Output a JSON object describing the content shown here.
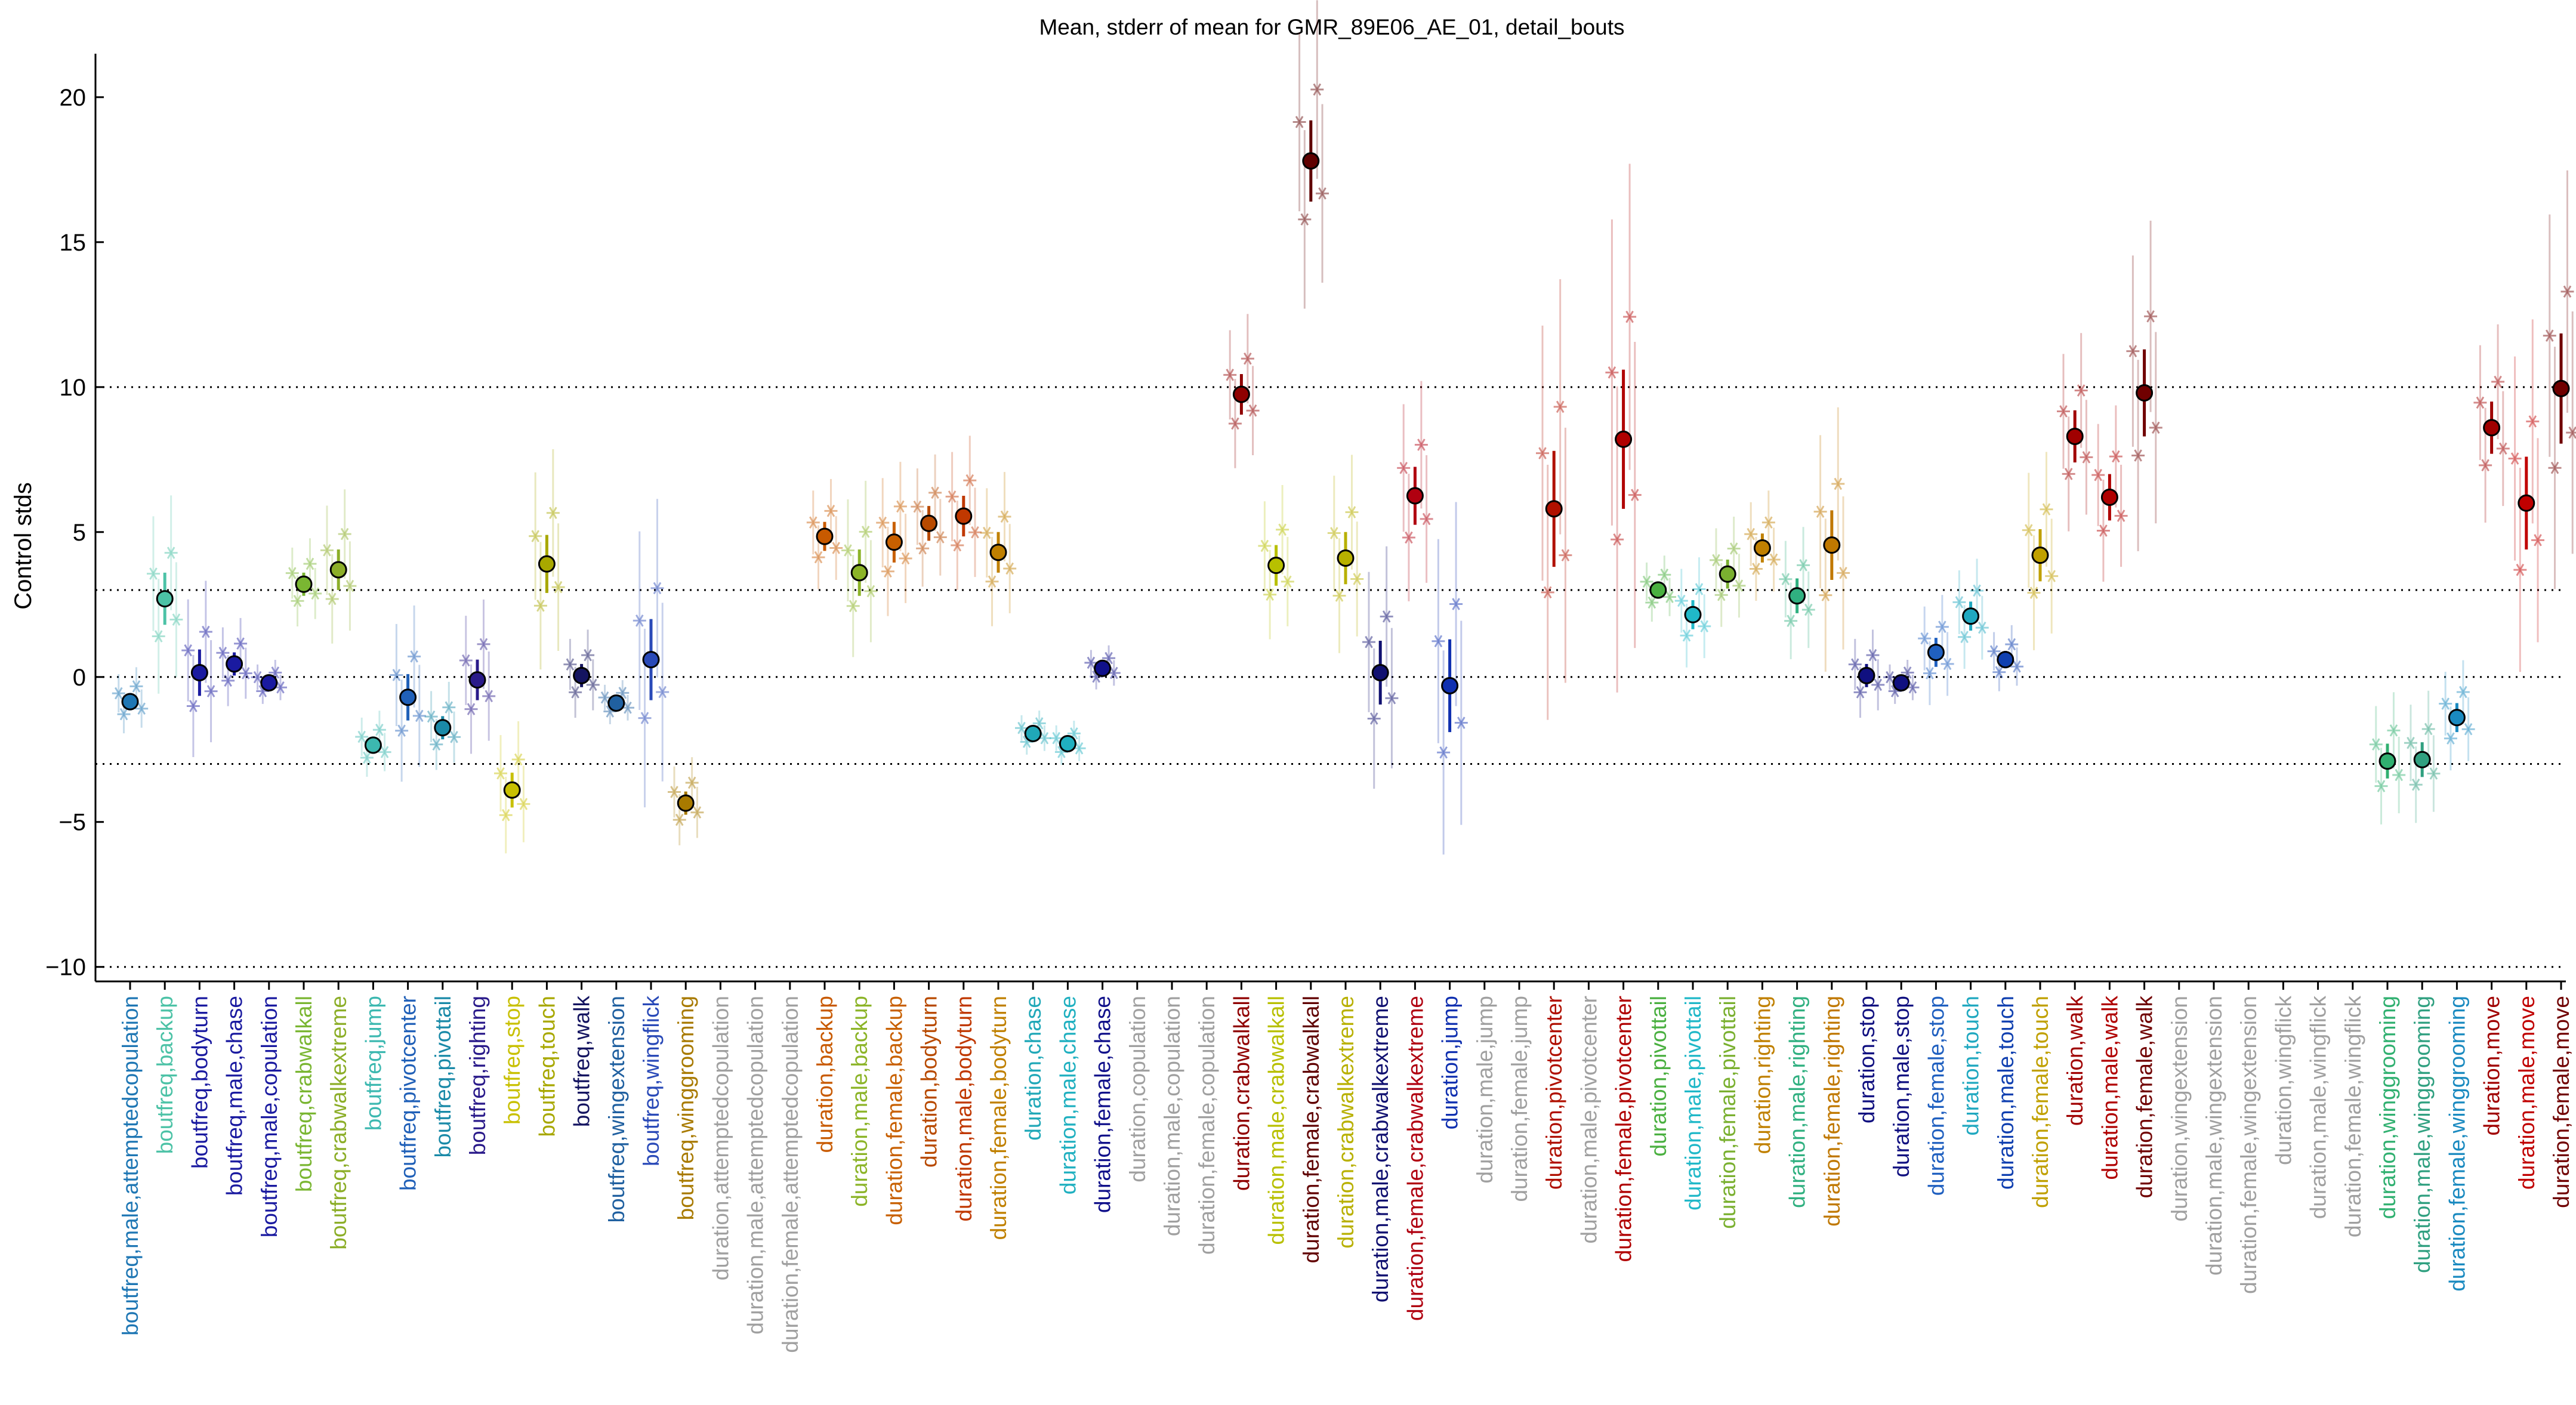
{
  "chart_data": {
    "type": "scatter",
    "title": "Mean, stderr of mean for GMR_89E06_AE_01, detail_bouts",
    "xlabel": "",
    "ylabel": "Control stds",
    "ylim": [
      -10.5,
      21.5
    ],
    "yticks": [
      -10,
      -5,
      0,
      5,
      10,
      15,
      20
    ],
    "ytick_labels": [
      "−10",
      "−5",
      "0",
      "5",
      "10",
      "15",
      "20"
    ],
    "reference_lines": [
      -10,
      -3,
      0,
      3,
      10
    ],
    "grid": false,
    "legend": "none",
    "categories": [
      "boutfreq,male,attemptedcopulation",
      "boutfreq,backup",
      "boutfreq,bodyturn",
      "boutfreq,male,chase",
      "boutfreq,male,copulation",
      "boutfreq,crabwalkall",
      "boutfreq,crabwalkextreme",
      "boutfreq,jump",
      "boutfreq,pivotcenter",
      "boutfreq,pivottail",
      "boutfreq,righting",
      "boutfreq,stop",
      "boutfreq,touch",
      "boutfreq,walk",
      "boutfreq,wingextension",
      "boutfreq,wingflick",
      "boutfreq,winggrooming",
      "duration,attemptedcopulation",
      "duration,male,attemptedcopulation",
      "duration,female,attemptedcopulation",
      "duration,backup",
      "duration,male,backup",
      "duration,female,backup",
      "duration,bodyturn",
      "duration,male,bodyturn",
      "duration,female,bodyturn",
      "duration,chase",
      "duration,male,chase",
      "duration,female,chase",
      "duration,copulation",
      "duration,male,copulation",
      "duration,female,copulation",
      "duration,crabwalkall",
      "duration,male,crabwalkall",
      "duration,female,crabwalkall",
      "duration,crabwalkextreme",
      "duration,male,crabwalkextreme",
      "duration,female,crabwalkextreme",
      "duration,jump",
      "duration,male,jump",
      "duration,female,jump",
      "duration,pivotcenter",
      "duration,male,pivotcenter",
      "duration,female,pivotcenter",
      "duration,pivottail",
      "duration,male,pivottail",
      "duration,female,pivottail",
      "duration,righting",
      "duration,male,righting",
      "duration,female,righting",
      "duration,stop",
      "duration,male,stop",
      "duration,female,stop",
      "duration,touch",
      "duration,male,touch",
      "duration,female,touch",
      "duration,walk",
      "duration,male,walk",
      "duration,female,walk",
      "duration,wingextension",
      "duration,male,wingextension",
      "duration,female,wingextension",
      "duration,wingflick",
      "duration,male,wingflick",
      "duration,female,wingflick",
      "duration,winggrooming",
      "duration,male,winggrooming",
      "duration,female,winggrooming",
      "duration,move",
      "duration,male,move",
      "duration,female,move"
    ],
    "label_colors": [
      "#1f77b4",
      "#4cc2a6",
      "#1a1aa0",
      "#1a1aa0",
      "#1a1aa0",
      "#7ab632",
      "#8cae28",
      "#3cb8b0",
      "#2060b8",
      "#1a8aa8",
      "#2a1a8a",
      "#c8c000",
      "#a8a800",
      "#141460",
      "#2060a0",
      "#2a4ab8",
      "#a87a00",
      "#a0a0a0",
      "#a0a0a0",
      "#a0a0a0",
      "#c85a00",
      "#8cb428",
      "#c86000",
      "#b84a00",
      "#c03800",
      "#c08000",
      "#20a8b8",
      "#20b0c0",
      "#10108a",
      "#a0a0a0",
      "#a0a0a0",
      "#a0a0a0",
      "#900000",
      "#b8c000",
      "#600000",
      "#b8b000",
      "#101070",
      "#b00010",
      "#1030b0",
      "#a0a0a0",
      "#a0a0a0",
      "#b01000",
      "#a0a0a0",
      "#b00000",
      "#4ab040",
      "#20b8c8",
      "#7ab030",
      "#c08000",
      "#30b080",
      "#c07800",
      "#101080",
      "#101080",
      "#2060c0",
      "#20a8c0",
      "#1040b0",
      "#c0a000",
      "#a00000",
      "#b00000",
      "#700000",
      "#a0a0a0",
      "#a0a0a0",
      "#a0a0a0",
      "#a0a0a0",
      "#a0a0a0",
      "#a0a0a0",
      "#30b070",
      "#30a080",
      "#1a8ac0",
      "#a00000",
      "#c00000",
      "#700000"
    ],
    "series": [
      {
        "values": [
          -0.85,
          2.7,
          0.15,
          0.45,
          -0.2,
          3.2,
          3.7,
          -2.35,
          -0.7,
          -1.75,
          -0.1,
          -3.9,
          3.9,
          0.05,
          -0.9,
          0.6,
          -4.35,
          null,
          null,
          null,
          4.85,
          3.6,
          4.65,
          5.3,
          5.55,
          4.3,
          -1.95,
          -2.3,
          0.3,
          null,
          null,
          null,
          9.75,
          3.85,
          17.8,
          4.1,
          0.15,
          6.25,
          -0.3,
          null,
          null,
          5.8,
          null,
          8.2,
          3.0,
          2.15,
          3.55,
          4.45,
          2.8,
          4.55,
          0.05,
          -0.2,
          0.85,
          2.1,
          0.6,
          4.2,
          8.3,
          6.2,
          9.8,
          null,
          null,
          null,
          null,
          null,
          null,
          -2.9,
          -2.85,
          -1.4,
          8.6,
          6.0,
          9.95
        ],
        "stderr": [
          0.3,
          0.9,
          0.8,
          0.4,
          0.2,
          0.4,
          0.7,
          0.3,
          0.8,
          0.4,
          0.7,
          0.6,
          1.0,
          0.4,
          0.2,
          1.4,
          0.4,
          null,
          null,
          null,
          0.5,
          0.8,
          0.7,
          0.6,
          0.7,
          0.7,
          0.2,
          0.2,
          0.2,
          null,
          null,
          null,
          0.7,
          0.7,
          1.4,
          0.9,
          1.1,
          1.0,
          1.6,
          null,
          null,
          2.0,
          null,
          2.4,
          0.3,
          0.5,
          0.5,
          0.5,
          0.6,
          1.2,
          0.4,
          0.2,
          0.5,
          0.5,
          0.3,
          0.9,
          0.9,
          0.8,
          1.5,
          null,
          null,
          null,
          null,
          null,
          null,
          0.6,
          0.6,
          0.5,
          0.9,
          1.6,
          1.9
        ]
      }
    ]
  }
}
